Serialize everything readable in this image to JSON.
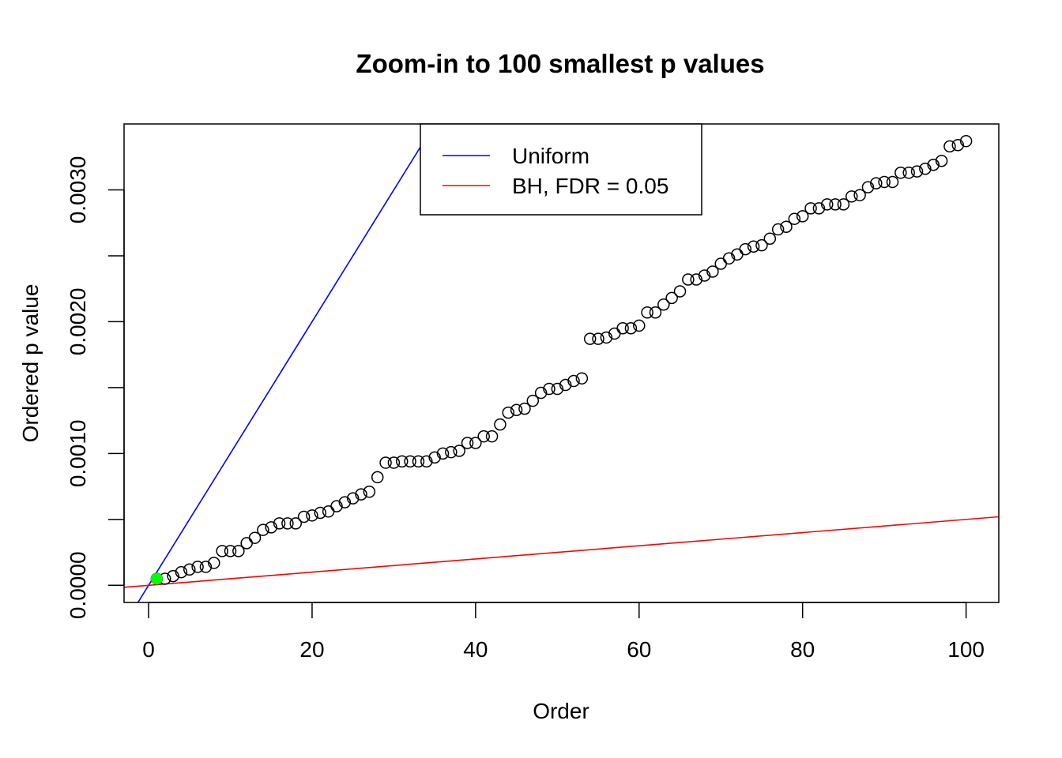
{
  "chart_data": {
    "type": "scatter",
    "title": "Zoom-in to 100 smallest p values",
    "xlabel": "Order",
    "ylabel": "Ordered p value",
    "xlim": [
      -3,
      104
    ],
    "ylim": [
      -0.00013,
      0.0035
    ],
    "x_ticks": [
      0,
      20,
      40,
      60,
      80,
      100
    ],
    "x_tick_labels": [
      "0",
      "20",
      "40",
      "60",
      "80",
      "100"
    ],
    "y_ticks": [
      0,
      0.0005,
      0.001,
      0.0015,
      0.002,
      0.0025,
      0.003
    ],
    "y_tick_labels": [
      "0.0000",
      "",
      "0.0010",
      "",
      "0.0020",
      "",
      "0.0030"
    ],
    "grid": false,
    "legend_position": "top-center",
    "legend": [
      {
        "label": "Uniform",
        "color": "#0000ff"
      },
      {
        "label": "BH, FDR = 0.05",
        "color": "#ff0000"
      }
    ],
    "lines": [
      {
        "name": "Uniform",
        "color": "#0000ff",
        "slope": 0.0001,
        "intercept": 0
      },
      {
        "name": "BH, FDR = 0.05",
        "color": "#ff0000",
        "slope": 5e-06,
        "intercept": 0
      }
    ],
    "highlight": {
      "x": 1,
      "y": 5e-05,
      "color": "#00ff00"
    },
    "series": [
      {
        "x": [
          1,
          2,
          3,
          4,
          5,
          6,
          7,
          8,
          9,
          10,
          11,
          12,
          13,
          14,
          15,
          16,
          17,
          18,
          19,
          20,
          21,
          22,
          23,
          24,
          25,
          26,
          27,
          28,
          29,
          30,
          31,
          32,
          33,
          34,
          35,
          36,
          37,
          38,
          39,
          40,
          41,
          42,
          43,
          44,
          45,
          46,
          47,
          48,
          49,
          50,
          51,
          52,
          53,
          54,
          55,
          56,
          57,
          58,
          59,
          60,
          61,
          62,
          63,
          64,
          65,
          66,
          67,
          68,
          69,
          70,
          71,
          72,
          73,
          74,
          75,
          76,
          77,
          78,
          79,
          80,
          81,
          82,
          83,
          84,
          85,
          86,
          87,
          88,
          89,
          90,
          91,
          92,
          93,
          94,
          95,
          96,
          97,
          98,
          99,
          100
        ],
        "y": [
          5e-05,
          5e-05,
          7e-05,
          0.0001,
          0.00012,
          0.00014,
          0.00014,
          0.00017,
          0.00026,
          0.00026,
          0.00026,
          0.00032,
          0.00036,
          0.00042,
          0.00044,
          0.00047,
          0.00047,
          0.00047,
          0.00052,
          0.00053,
          0.00055,
          0.00056,
          0.0006,
          0.00063,
          0.00066,
          0.00069,
          0.00071,
          0.00082,
          0.00093,
          0.00093,
          0.00094,
          0.00094,
          0.00094,
          0.00094,
          0.00097,
          0.001,
          0.00101,
          0.00102,
          0.00108,
          0.00108,
          0.00113,
          0.00113,
          0.00122,
          0.00131,
          0.00133,
          0.00134,
          0.0014,
          0.00146,
          0.00149,
          0.00149,
          0.00152,
          0.00155,
          0.00157,
          0.00187,
          0.00187,
          0.00188,
          0.00191,
          0.00195,
          0.00195,
          0.00197,
          0.00207,
          0.00207,
          0.00213,
          0.00218,
          0.00223,
          0.00232,
          0.00232,
          0.00235,
          0.00238,
          0.00244,
          0.00248,
          0.00251,
          0.00255,
          0.00257,
          0.00258,
          0.00263,
          0.0027,
          0.00272,
          0.00278,
          0.0028,
          0.00286,
          0.00286,
          0.00289,
          0.00289,
          0.00289,
          0.00295,
          0.00296,
          0.00302,
          0.00305,
          0.00306,
          0.00306,
          0.00313,
          0.00313,
          0.00314,
          0.00316,
          0.00319,
          0.00322,
          0.00333,
          0.00334,
          0.00337
        ]
      }
    ]
  }
}
